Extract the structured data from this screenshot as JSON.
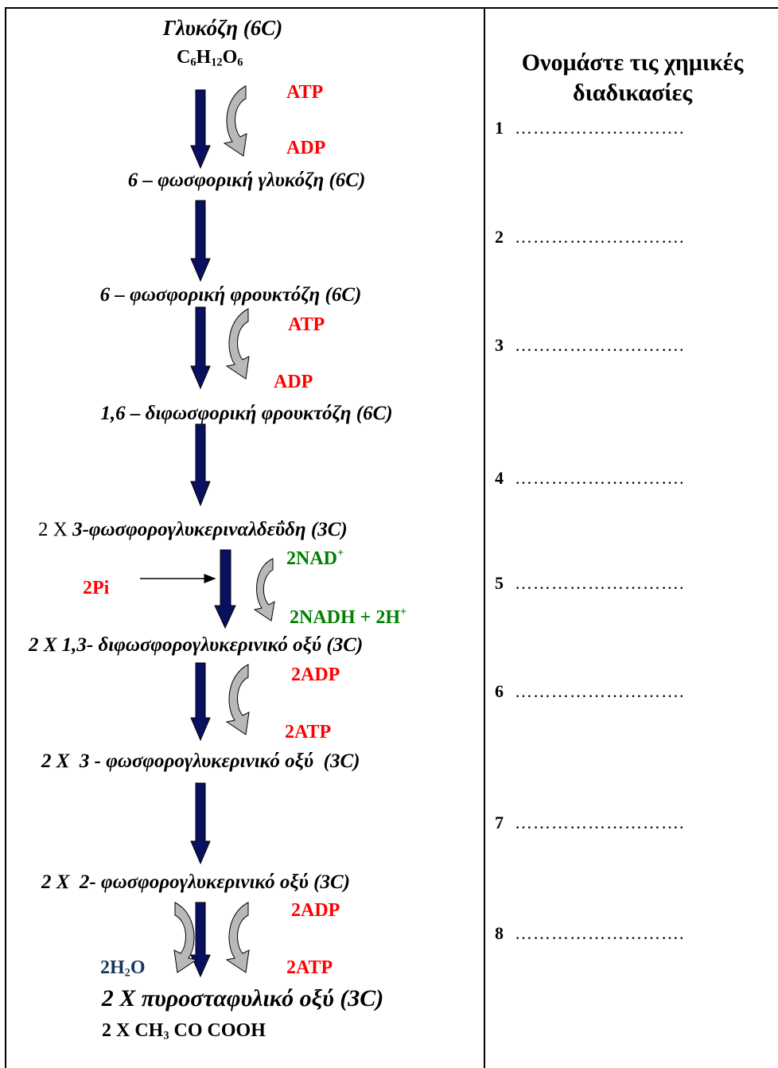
{
  "pathway": {
    "glucose_name": "Γλυκόζη (6C)",
    "glucose_formula": {
      "c": "C",
      "c_sub": "6",
      "h": "H",
      "h_sub": "12",
      "o": "O",
      "o_sub": "6"
    },
    "step1": {
      "in": "ATP",
      "out": "ADP"
    },
    "g6p": "6 – φωσφορική γλυκόζη (6C)",
    "f6p": "6 – φωσφορική φρουκτόζη (6C)",
    "step3": {
      "in": "ATP",
      "out": "ADP"
    },
    "f16bp": "1,6 – διφωσφορική φρουκτόζη (6C)",
    "g3p_prefix": "2 Χ",
    "g3p": "3-φωσφορογλυκεριναλδεΰδη (3C)",
    "step5": {
      "pi": "2Pi",
      "nad": "2NAD",
      "nad_sup": "+",
      "nadh": "2NADH + 2H",
      "nadh_sup": "+"
    },
    "bpg": "2 Χ 1,3- διφωσφορογλυκερινικό οξύ (3C)",
    "step6": {
      "in": "2ADP",
      "out": "2ATP"
    },
    "pg3": "2 Χ  3 - φωσφορογλυκερινικό οξύ  (3C)",
    "pg2": "2 Χ  2- φωσφορογλυκερινικό οξύ (3C)",
    "step8": {
      "water": "2H",
      "water_sub": "2",
      "water_o": "O",
      "in": "2ADP",
      "out": "2ATP"
    },
    "pyruvate": "2 Χ πυροσταφυλικό οξύ (3C)",
    "pyruvate_formula": {
      "prefix": "2 Χ CH",
      "sub": "3",
      "suffix": " CO COOH"
    }
  },
  "questions": {
    "heading_line1": "Ονομάστε τις χημικές",
    "heading_line2": "διαδικασίες",
    "items": [
      {
        "num": "1",
        "blank": "………………………."
      },
      {
        "num": "2",
        "blank": "………………………."
      },
      {
        "num": "3",
        "blank": "………………………."
      },
      {
        "num": "4",
        "blank": "………………………."
      },
      {
        "num": "5",
        "blank": "………………………."
      },
      {
        "num": "6",
        "blank": "………………………."
      },
      {
        "num": "7",
        "blank": "………………………."
      },
      {
        "num": "8",
        "blank": "………………………."
      }
    ]
  },
  "colors": {
    "arrow_fill": "#0a1060",
    "curve_fill": "#b8b8b8",
    "red": "#ff0000",
    "green": "#008000",
    "water": "#17375e"
  }
}
